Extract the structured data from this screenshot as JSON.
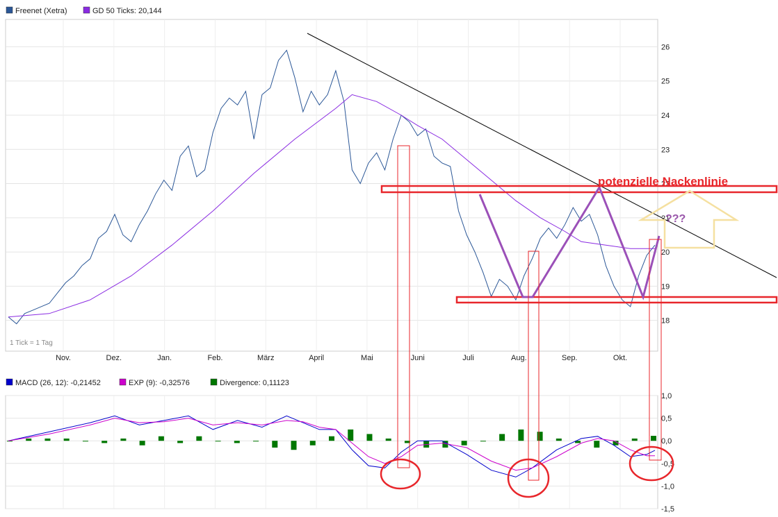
{
  "chart_data": [
    {
      "type": "line",
      "legend": [
        {
          "label": "Freenet (Xetra)",
          "color": "#2b5797"
        },
        {
          "label": "GD 50 Ticks: 20,144",
          "color": "#8a2be2"
        }
      ],
      "x_labels": [
        "Nov.",
        "Dez.",
        "Jan.",
        "Feb.",
        "März",
        "April",
        "Mai",
        "Juni",
        "Juli",
        "Aug.",
        "Sep.",
        "Okt."
      ],
      "y_ticks": [
        {
          "value": 18,
          "label": "18"
        },
        {
          "value": 19,
          "label": "19"
        },
        {
          "value": 20,
          "label": "20"
        },
        {
          "value": 21,
          "label": "21"
        },
        {
          "value": 22,
          "label": "22"
        },
        {
          "value": 23,
          "label": "23"
        },
        {
          "value": 24,
          "label": "24"
        },
        {
          "value": 25,
          "label": "25"
        },
        {
          "value": 26,
          "label": "26"
        }
      ],
      "ylim": [
        17.1,
        26.8
      ],
      "note": "1 Tick = 1 Tag",
      "series": [
        {
          "name": "Freenet (Xetra)",
          "color": "#2b5797",
          "points": [
            [
              0,
              18.1
            ],
            [
              2,
              17.9
            ],
            [
              4,
              18.2
            ],
            [
              6,
              18.3
            ],
            [
              8,
              18.4
            ],
            [
              10,
              18.5
            ],
            [
              12,
              18.8
            ],
            [
              14,
              19.1
            ],
            [
              16,
              19.3
            ],
            [
              18,
              19.6
            ],
            [
              20,
              19.8
            ],
            [
              22,
              20.4
            ],
            [
              24,
              20.6
            ],
            [
              26,
              21.1
            ],
            [
              28,
              20.5
            ],
            [
              30,
              20.3
            ],
            [
              32,
              20.8
            ],
            [
              34,
              21.2
            ],
            [
              36,
              21.7
            ],
            [
              38,
              22.1
            ],
            [
              40,
              21.8
            ],
            [
              42,
              22.8
            ],
            [
              44,
              23.1
            ],
            [
              46,
              22.2
            ],
            [
              48,
              22.4
            ],
            [
              50,
              23.5
            ],
            [
              52,
              24.2
            ],
            [
              54,
              24.5
            ],
            [
              56,
              24.3
            ],
            [
              58,
              24.7
            ],
            [
              60,
              23.3
            ],
            [
              62,
              24.6
            ],
            [
              64,
              24.8
            ],
            [
              66,
              25.6
            ],
            [
              68,
              25.9
            ],
            [
              70,
              25.1
            ],
            [
              72,
              24.1
            ],
            [
              74,
              24.7
            ],
            [
              76,
              24.3
            ],
            [
              78,
              24.6
            ],
            [
              80,
              25.3
            ],
            [
              82,
              24.4
            ],
            [
              84,
              22.4
            ],
            [
              86,
              22.0
            ],
            [
              88,
              22.6
            ],
            [
              90,
              22.9
            ],
            [
              92,
              22.4
            ],
            [
              94,
              23.3
            ],
            [
              96,
              24.0
            ],
            [
              98,
              23.8
            ],
            [
              100,
              23.4
            ],
            [
              102,
              23.6
            ],
            [
              104,
              22.8
            ],
            [
              106,
              22.6
            ],
            [
              108,
              22.5
            ],
            [
              110,
              21.2
            ],
            [
              112,
              20.5
            ],
            [
              114,
              20.0
            ],
            [
              116,
              19.4
            ],
            [
              118,
              18.7
            ],
            [
              120,
              19.2
            ],
            [
              122,
              19.0
            ],
            [
              124,
              18.6
            ],
            [
              126,
              19.3
            ],
            [
              128,
              19.8
            ],
            [
              130,
              20.4
            ],
            [
              132,
              20.7
            ],
            [
              134,
              20.4
            ],
            [
              136,
              20.8
            ],
            [
              138,
              21.3
            ],
            [
              140,
              20.9
            ],
            [
              142,
              21.1
            ],
            [
              144,
              20.5
            ],
            [
              146,
              19.6
            ],
            [
              148,
              19.0
            ],
            [
              150,
              18.6
            ],
            [
              152,
              18.4
            ],
            [
              154,
              19.3
            ],
            [
              156,
              19.9
            ],
            [
              158,
              20.2
            ]
          ]
        },
        {
          "name": "GD 50 Ticks",
          "color": "#8a2be2",
          "points": [
            [
              0,
              18.1
            ],
            [
              10,
              18.2
            ],
            [
              20,
              18.6
            ],
            [
              30,
              19.3
            ],
            [
              40,
              20.2
            ],
            [
              50,
              21.2
            ],
            [
              60,
              22.3
            ],
            [
              70,
              23.3
            ],
            [
              80,
              24.2
            ],
            [
              84,
              24.6
            ],
            [
              90,
              24.4
            ],
            [
              96,
              24.0
            ],
            [
              100,
              23.7
            ],
            [
              106,
              23.3
            ],
            [
              112,
              22.7
            ],
            [
              118,
              22.1
            ],
            [
              124,
              21.5
            ],
            [
              130,
              21.0
            ],
            [
              136,
              20.6
            ],
            [
              140,
              20.3
            ],
            [
              146,
              20.2
            ],
            [
              152,
              20.1
            ],
            [
              158,
              20.1
            ]
          ]
        }
      ]
    },
    {
      "type": "bar",
      "legend": [
        {
          "label": "MACD (26, 12): -0,21452",
          "color": "#0000cc"
        },
        {
          "label": "EXP (9): -0,32576",
          "color": "#cc00cc"
        },
        {
          "label": "Divergence: 0,11123",
          "color": "#007700"
        }
      ],
      "y_ticks": [
        {
          "value": 1.0,
          "label": "1,0"
        },
        {
          "value": 0.5,
          "label": "0,5"
        },
        {
          "value": 0.0,
          "label": "0,0"
        },
        {
          "value": -0.5,
          "label": "-0,5"
        },
        {
          "value": -1.0,
          "label": "-1,0"
        },
        {
          "value": -1.5,
          "label": "-1,5"
        }
      ],
      "ylim": [
        -1.5,
        1.0
      ],
      "series": [
        {
          "name": "MACD (26, 12)",
          "color": "#0000cc",
          "points": [
            [
              0,
              0.0
            ],
            [
              10,
              0.2
            ],
            [
              20,
              0.4
            ],
            [
              26,
              0.55
            ],
            [
              32,
              0.35
            ],
            [
              38,
              0.45
            ],
            [
              44,
              0.55
            ],
            [
              50,
              0.25
            ],
            [
              56,
              0.45
            ],
            [
              62,
              0.3
            ],
            [
              68,
              0.55
            ],
            [
              72,
              0.4
            ],
            [
              76,
              0.25
            ],
            [
              80,
              0.25
            ],
            [
              84,
              -0.2
            ],
            [
              88,
              -0.55
            ],
            [
              92,
              -0.6
            ],
            [
              96,
              -0.25
            ],
            [
              100,
              0.0
            ],
            [
              106,
              0.0
            ],
            [
              112,
              -0.3
            ],
            [
              118,
              -0.65
            ],
            [
              124,
              -0.8
            ],
            [
              128,
              -0.6
            ],
            [
              134,
              -0.2
            ],
            [
              140,
              0.05
            ],
            [
              144,
              0.1
            ],
            [
              148,
              -0.1
            ],
            [
              152,
              -0.35
            ],
            [
              156,
              -0.3
            ],
            [
              158,
              -0.21
            ]
          ]
        },
        {
          "name": "EXP (9)",
          "color": "#cc00cc",
          "points": [
            [
              0,
              0.0
            ],
            [
              10,
              0.15
            ],
            [
              20,
              0.35
            ],
            [
              26,
              0.5
            ],
            [
              32,
              0.4
            ],
            [
              38,
              0.42
            ],
            [
              44,
              0.5
            ],
            [
              50,
              0.35
            ],
            [
              56,
              0.4
            ],
            [
              62,
              0.35
            ],
            [
              68,
              0.45
            ],
            [
              72,
              0.42
            ],
            [
              76,
              0.3
            ],
            [
              80,
              0.25
            ],
            [
              84,
              -0.05
            ],
            [
              88,
              -0.35
            ],
            [
              92,
              -0.5
            ],
            [
              96,
              -0.35
            ],
            [
              100,
              -0.1
            ],
            [
              106,
              -0.05
            ],
            [
              112,
              -0.15
            ],
            [
              118,
              -0.45
            ],
            [
              124,
              -0.65
            ],
            [
              128,
              -0.6
            ],
            [
              134,
              -0.35
            ],
            [
              140,
              -0.05
            ],
            [
              144,
              0.05
            ],
            [
              148,
              0.0
            ],
            [
              152,
              -0.2
            ],
            [
              156,
              -0.33
            ],
            [
              158,
              -0.33
            ]
          ]
        },
        {
          "name": "Divergence",
          "color": "#007700",
          "values": [
            0.0,
            0.05,
            0.05,
            0.05,
            0.0,
            -0.05,
            0.05,
            -0.1,
            0.1,
            -0.05,
            0.1,
            0.0,
            -0.05,
            0.0,
            -0.15,
            -0.2,
            -0.1,
            0.1,
            0.25,
            0.15,
            0.05,
            -0.05,
            -0.15,
            -0.15,
            -0.1,
            0.0,
            0.15,
            0.25,
            0.2,
            0.05,
            -0.05,
            -0.15,
            -0.1,
            0.05,
            0.11
          ]
        }
      ]
    }
  ],
  "annotations": {
    "neckline_label": "potenzielle Nackenlinie",
    "question": "???"
  }
}
